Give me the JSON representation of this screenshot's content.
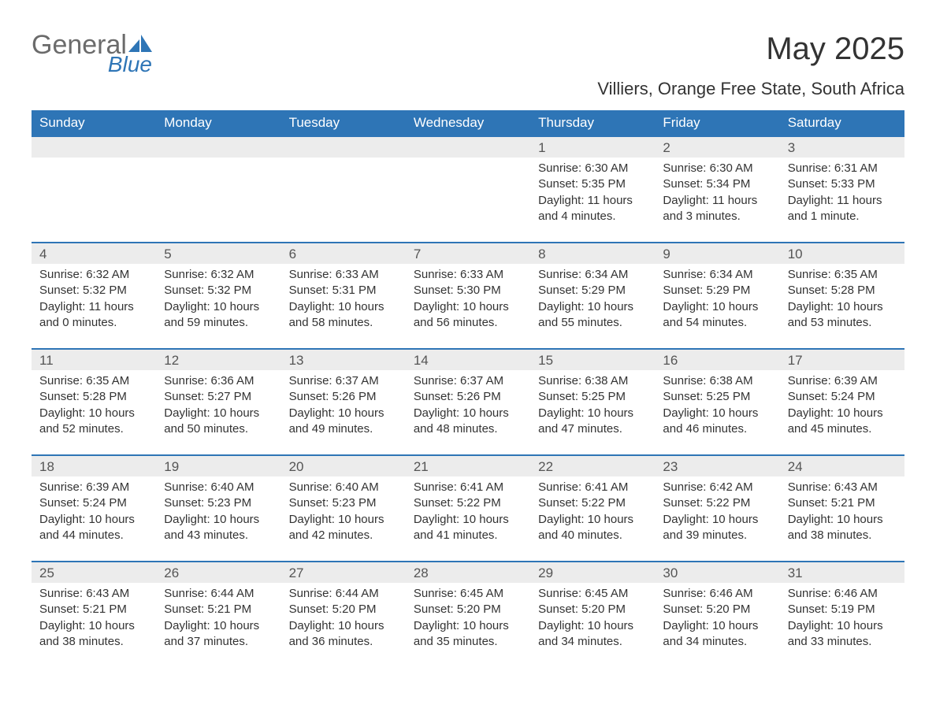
{
  "logo": {
    "word1": "General",
    "word2": "Blue"
  },
  "title": "May 2025",
  "location": "Villiers, Orange Free State, South Africa",
  "style": {
    "header_bg": "#2e75b6",
    "header_text": "#ffffff",
    "daynum_bg": "#ececec",
    "daynum_text": "#555555",
    "body_text": "#333333",
    "week_border": "#2e75b6",
    "page_bg": "#ffffff",
    "logo_gray": "#6b6b6b",
    "logo_blue": "#2e75b6",
    "title_fontsize": 40,
    "location_fontsize": 22,
    "header_fontsize": 17,
    "daynum_fontsize": 17,
    "cell_fontsize": 15
  },
  "weekdays": [
    "Sunday",
    "Monday",
    "Tuesday",
    "Wednesday",
    "Thursday",
    "Friday",
    "Saturday"
  ],
  "weeks": [
    [
      null,
      null,
      null,
      null,
      {
        "day": "1",
        "sunrise": "6:30 AM",
        "sunset": "5:35 PM",
        "daylight": "11 hours and 4 minutes."
      },
      {
        "day": "2",
        "sunrise": "6:30 AM",
        "sunset": "5:34 PM",
        "daylight": "11 hours and 3 minutes."
      },
      {
        "day": "3",
        "sunrise": "6:31 AM",
        "sunset": "5:33 PM",
        "daylight": "11 hours and 1 minute."
      }
    ],
    [
      {
        "day": "4",
        "sunrise": "6:32 AM",
        "sunset": "5:32 PM",
        "daylight": "11 hours and 0 minutes."
      },
      {
        "day": "5",
        "sunrise": "6:32 AM",
        "sunset": "5:32 PM",
        "daylight": "10 hours and 59 minutes."
      },
      {
        "day": "6",
        "sunrise": "6:33 AM",
        "sunset": "5:31 PM",
        "daylight": "10 hours and 58 minutes."
      },
      {
        "day": "7",
        "sunrise": "6:33 AM",
        "sunset": "5:30 PM",
        "daylight": "10 hours and 56 minutes."
      },
      {
        "day": "8",
        "sunrise": "6:34 AM",
        "sunset": "5:29 PM",
        "daylight": "10 hours and 55 minutes."
      },
      {
        "day": "9",
        "sunrise": "6:34 AM",
        "sunset": "5:29 PM",
        "daylight": "10 hours and 54 minutes."
      },
      {
        "day": "10",
        "sunrise": "6:35 AM",
        "sunset": "5:28 PM",
        "daylight": "10 hours and 53 minutes."
      }
    ],
    [
      {
        "day": "11",
        "sunrise": "6:35 AM",
        "sunset": "5:28 PM",
        "daylight": "10 hours and 52 minutes."
      },
      {
        "day": "12",
        "sunrise": "6:36 AM",
        "sunset": "5:27 PM",
        "daylight": "10 hours and 50 minutes."
      },
      {
        "day": "13",
        "sunrise": "6:37 AM",
        "sunset": "5:26 PM",
        "daylight": "10 hours and 49 minutes."
      },
      {
        "day": "14",
        "sunrise": "6:37 AM",
        "sunset": "5:26 PM",
        "daylight": "10 hours and 48 minutes."
      },
      {
        "day": "15",
        "sunrise": "6:38 AM",
        "sunset": "5:25 PM",
        "daylight": "10 hours and 47 minutes."
      },
      {
        "day": "16",
        "sunrise": "6:38 AM",
        "sunset": "5:25 PM",
        "daylight": "10 hours and 46 minutes."
      },
      {
        "day": "17",
        "sunrise": "6:39 AM",
        "sunset": "5:24 PM",
        "daylight": "10 hours and 45 minutes."
      }
    ],
    [
      {
        "day": "18",
        "sunrise": "6:39 AM",
        "sunset": "5:24 PM",
        "daylight": "10 hours and 44 minutes."
      },
      {
        "day": "19",
        "sunrise": "6:40 AM",
        "sunset": "5:23 PM",
        "daylight": "10 hours and 43 minutes."
      },
      {
        "day": "20",
        "sunrise": "6:40 AM",
        "sunset": "5:23 PM",
        "daylight": "10 hours and 42 minutes."
      },
      {
        "day": "21",
        "sunrise": "6:41 AM",
        "sunset": "5:22 PM",
        "daylight": "10 hours and 41 minutes."
      },
      {
        "day": "22",
        "sunrise": "6:41 AM",
        "sunset": "5:22 PM",
        "daylight": "10 hours and 40 minutes."
      },
      {
        "day": "23",
        "sunrise": "6:42 AM",
        "sunset": "5:22 PM",
        "daylight": "10 hours and 39 minutes."
      },
      {
        "day": "24",
        "sunrise": "6:43 AM",
        "sunset": "5:21 PM",
        "daylight": "10 hours and 38 minutes."
      }
    ],
    [
      {
        "day": "25",
        "sunrise": "6:43 AM",
        "sunset": "5:21 PM",
        "daylight": "10 hours and 38 minutes."
      },
      {
        "day": "26",
        "sunrise": "6:44 AM",
        "sunset": "5:21 PM",
        "daylight": "10 hours and 37 minutes."
      },
      {
        "day": "27",
        "sunrise": "6:44 AM",
        "sunset": "5:20 PM",
        "daylight": "10 hours and 36 minutes."
      },
      {
        "day": "28",
        "sunrise": "6:45 AM",
        "sunset": "5:20 PM",
        "daylight": "10 hours and 35 minutes."
      },
      {
        "day": "29",
        "sunrise": "6:45 AM",
        "sunset": "5:20 PM",
        "daylight": "10 hours and 34 minutes."
      },
      {
        "day": "30",
        "sunrise": "6:46 AM",
        "sunset": "5:20 PM",
        "daylight": "10 hours and 34 minutes."
      },
      {
        "day": "31",
        "sunrise": "6:46 AM",
        "sunset": "5:19 PM",
        "daylight": "10 hours and 33 minutes."
      }
    ]
  ],
  "labels": {
    "sunrise": "Sunrise:",
    "sunset": "Sunset:",
    "daylight": "Daylight:"
  }
}
